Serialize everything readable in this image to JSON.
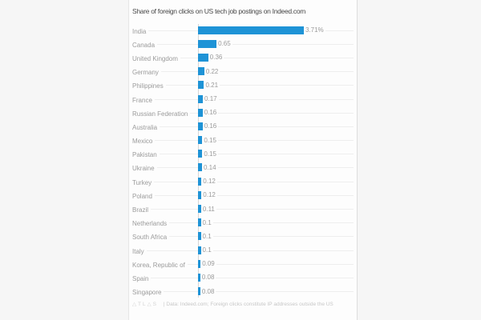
{
  "page": {
    "background_color": "#f6f6f6",
    "card_background_color": "#fdfdfd"
  },
  "chart_data": {
    "type": "bar",
    "orientation": "horizontal",
    "title": "Share of foreign clicks on US tech job postings on Indeed.com",
    "xlabel": "",
    "ylabel": "",
    "unit": "percent",
    "xlim": [
      0,
      4
    ],
    "grid": "horizontal row lines, vertical zero axis",
    "legend": "none",
    "bar_color": "#1e93d6",
    "categories": [
      "India",
      "Canada",
      "United Kingdom",
      "Germany",
      "Philippines",
      "France",
      "Russian Federation",
      "Australia",
      "Mexico",
      "Pakistan",
      "Ukraine",
      "Turkey",
      "Poland",
      "Brazil",
      "Netherlands",
      "South Africa",
      "Italy",
      "Korea, Republic of",
      "Spain",
      "Singapore"
    ],
    "values": [
      3.71,
      0.65,
      0.36,
      0.22,
      0.21,
      0.17,
      0.16,
      0.16,
      0.15,
      0.15,
      0.14,
      0.12,
      0.12,
      0.11,
      0.1,
      0.1,
      0.1,
      0.09,
      0.08,
      0.08
    ],
    "value_labels": [
      "3.71%",
      "0.65",
      "0.36",
      "0.22",
      "0.21",
      "0.17",
      "0.16",
      "0.16",
      "0.15",
      "0.15",
      "0.14",
      "0.12",
      "0.12",
      "0.11",
      "0.1",
      "0.1",
      "0.1",
      "0.09",
      "0.08",
      "0.08"
    ]
  },
  "footer": {
    "brand": "ATLAS",
    "brand_display": "△TL△S",
    "note": "| Data: Indeed.com; Foreign clicks constitute IP addresses outside the US"
  }
}
